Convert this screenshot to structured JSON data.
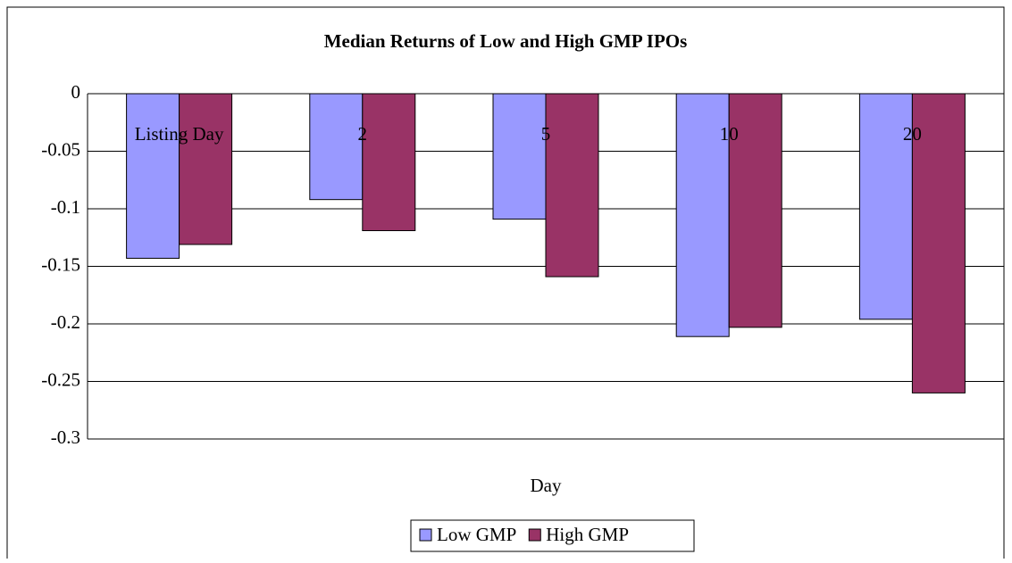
{
  "chart_data": {
    "type": "bar",
    "title": "Median Returns of Low and High GMP IPOs",
    "x_label": "Day",
    "categories": [
      "Listing Day",
      "2",
      "5",
      "10",
      "20"
    ],
    "series": [
      {
        "name": "Low GMP",
        "color": "#9999ff",
        "values": [
          -0.143,
          -0.092,
          -0.109,
          -0.211,
          -0.196
        ]
      },
      {
        "name": "High GMP",
        "color": "#993366",
        "values": [
          -0.131,
          -0.119,
          -0.159,
          -0.203,
          -0.26
        ]
      }
    ],
    "ylim": [
      -0.3,
      0
    ],
    "yticks": [
      0,
      -0.05,
      -0.1,
      -0.15,
      -0.2,
      -0.25,
      -0.3
    ],
    "grid": true,
    "legend": "bottom"
  }
}
